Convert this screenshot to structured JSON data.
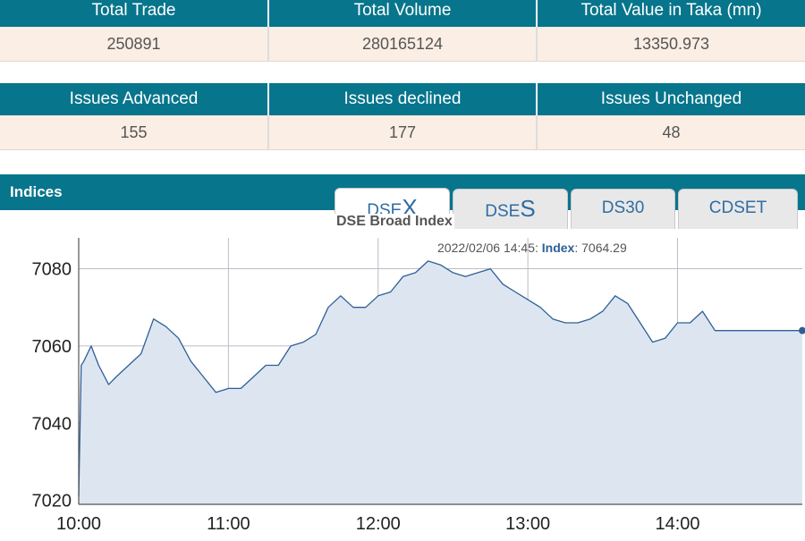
{
  "trade_stats": {
    "headers": [
      "Total Trade",
      "Total Volume",
      "Total Value in Taka (mn)"
    ],
    "values": [
      "250891",
      "280165124",
      "13350.973"
    ]
  },
  "issue_stats": {
    "headers": [
      "Issues Advanced",
      "Issues declined",
      "Issues Unchanged"
    ],
    "values": [
      "155",
      "177",
      "48"
    ]
  },
  "indices": {
    "title": "Indices",
    "tabs": [
      {
        "prefix": "DSE",
        "suffix": "X",
        "label": "DSEX"
      },
      {
        "prefix": "DSE",
        "suffix": "S",
        "label": "DSES"
      },
      {
        "prefix": "",
        "suffix": "",
        "label": "DS30"
      },
      {
        "prefix": "",
        "suffix": "",
        "label": "CDSET"
      }
    ],
    "active_tab": "DSEX"
  },
  "colors": {
    "header_bg": "#07758c",
    "row_bg": "#fbeee4",
    "line": "#2e5f97",
    "area": "#dde6f0"
  },
  "chart_data": {
    "type": "area",
    "title": "DSE Broad Index",
    "tooltip": {
      "time": "2022/02/06 14:45",
      "label": "Index",
      "value": "7064.29"
    },
    "xlabel": "",
    "ylabel": "",
    "x_ticks": [
      "10:00",
      "11:00",
      "12:00",
      "13:00",
      "14:00"
    ],
    "y_ticks": [
      7020,
      7040,
      7060,
      7080
    ],
    "ylim": [
      7019,
      7088
    ],
    "xlim": [
      "10:00",
      "14:50"
    ],
    "grid": true,
    "series": [
      {
        "x": [
          "10:00",
          "10:01",
          "10:02",
          "10:05",
          "10:08",
          "10:12",
          "10:15",
          "10:20",
          "10:25",
          "10:30",
          "10:35",
          "10:40",
          "10:45",
          "10:50",
          "10:55",
          "11:00",
          "11:05",
          "11:10",
          "11:15",
          "11:20",
          "11:25",
          "11:30",
          "11:35",
          "11:40",
          "11:45",
          "11:50",
          "11:55",
          "12:00",
          "12:05",
          "12:10",
          "12:15",
          "12:20",
          "12:25",
          "12:30",
          "12:35",
          "12:40",
          "12:45",
          "12:50",
          "12:55",
          "13:00",
          "13:05",
          "13:10",
          "13:15",
          "13:20",
          "13:25",
          "13:30",
          "13:35",
          "13:40",
          "13:45",
          "13:50",
          "13:55",
          "14:00",
          "14:05",
          "14:10",
          "14:15",
          "14:20",
          "14:25",
          "14:30",
          "14:35",
          "14:40",
          "14:45",
          "14:50"
        ],
        "y": [
          7021,
          7055,
          7056,
          7060,
          7055,
          7050,
          7052,
          7055,
          7058,
          7067,
          7065,
          7062,
          7056,
          7052,
          7048,
          7049,
          7049,
          7052,
          7055,
          7055,
          7060,
          7061,
          7063,
          7070,
          7073,
          7070,
          7070,
          7073,
          7074,
          7078,
          7079,
          7082,
          7081,
          7079,
          7078,
          7079,
          7080,
          7076,
          7074,
          7072,
          7070,
          7067,
          7066,
          7066,
          7067,
          7069,
          7073,
          7071,
          7066,
          7061,
          7062,
          7066,
          7066,
          7069,
          7064,
          7064,
          7064,
          7064,
          7064,
          7064,
          7064,
          7064
        ]
      }
    ]
  }
}
